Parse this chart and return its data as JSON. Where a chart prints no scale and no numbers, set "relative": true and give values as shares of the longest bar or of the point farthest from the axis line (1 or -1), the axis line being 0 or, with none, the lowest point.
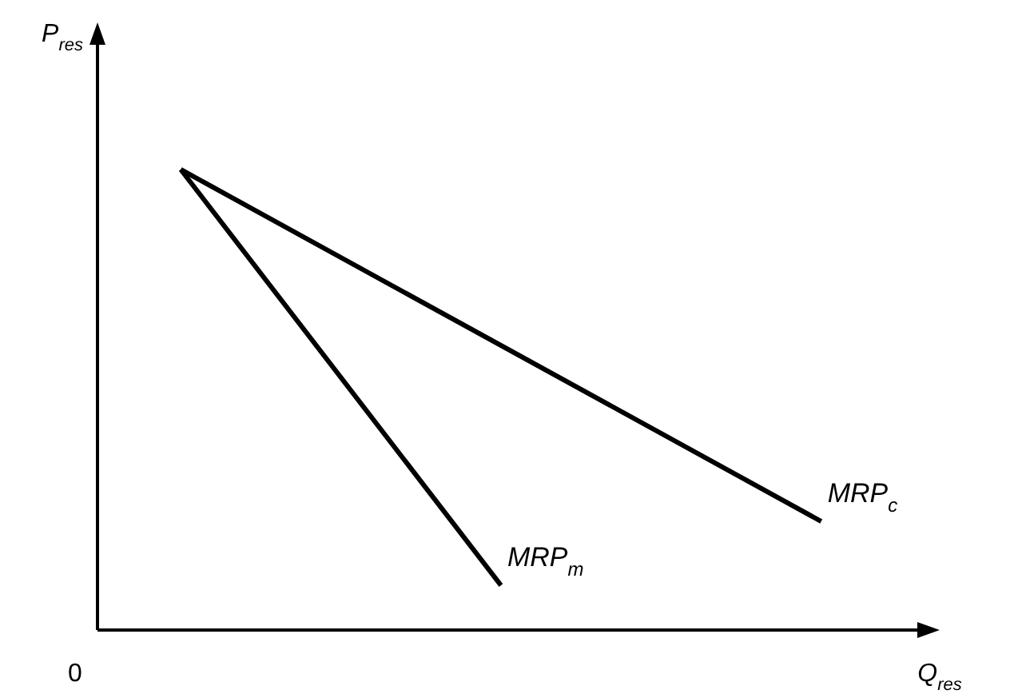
{
  "chart_data": {
    "type": "line",
    "relative": true,
    "categories": [
      null,
      null,
      null
    ],
    "xlabel": "Q$_{res}$",
    "ylabel": "P$_{res}$",
    "annotations": [
      "0"
    ],
    "legend": false,
    "marker": "none",
    "line_style": "solid",
    "series": [
      {
        "name": "MRP$_{m}$",
        "color": "#000000",
        "values": [
          1,
          0.097,
          null
        ]
      },
      {
        "name": "MRP$_{c}$",
        "color": "#000000",
        "values": [
          1,
          null,
          0.236
        ]
      }
    ]
  }
}
